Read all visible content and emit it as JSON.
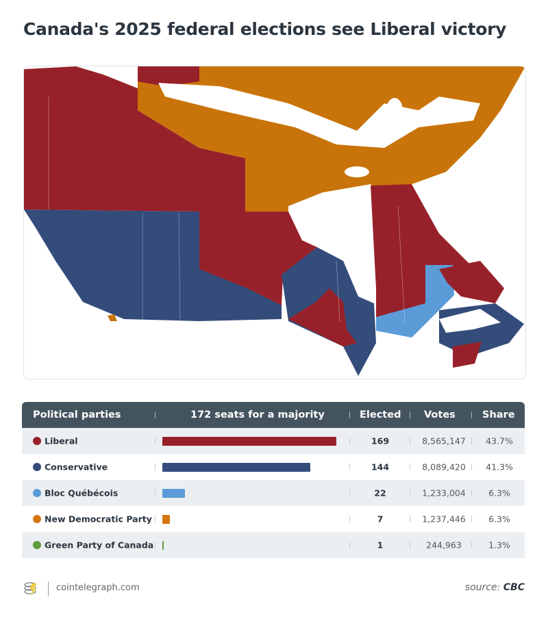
{
  "title": "Canada's 2025 federal elections see Liberal victory",
  "map": {
    "colors": {
      "liberal": "#97212a",
      "conservative": "#344c7a",
      "bloc": "#5b9bd8",
      "ndp": "#c9740a"
    }
  },
  "chart_data": {
    "type": "table",
    "columns": [
      "Political parties",
      "172 seats for a majority",
      "Elected",
      "Votes",
      "Share"
    ],
    "majority_seats": 172,
    "rows": [
      {
        "party": "Liberal",
        "color": "#97212a",
        "elected": 169,
        "elected_label": "169",
        "votes": "8,565,147",
        "share": "43.7%"
      },
      {
        "party": "Conservative",
        "color": "#344c7a",
        "elected": 144,
        "elected_label": "144",
        "votes": "8,089,420",
        "share": "41.3%"
      },
      {
        "party": "Bloc Québécois",
        "color": "#5b9bd8",
        "elected": 22,
        "elected_label": "22",
        "votes": "1,233,004",
        "share": "6.3%"
      },
      {
        "party": "New Democratic Party",
        "color": "#d4760f",
        "elected": 7,
        "elected_label": "7",
        "votes": "1,237,446",
        "share": "6.3%"
      },
      {
        "party": "Green Party of Canada",
        "color": "#5e9a3a",
        "elected": 1,
        "elected_label": "1",
        "votes": "244,963",
        "share": "1.3%"
      }
    ]
  },
  "footer": {
    "site": "cointelegraph.com",
    "source_prefix": "source: ",
    "source": "CBC"
  }
}
